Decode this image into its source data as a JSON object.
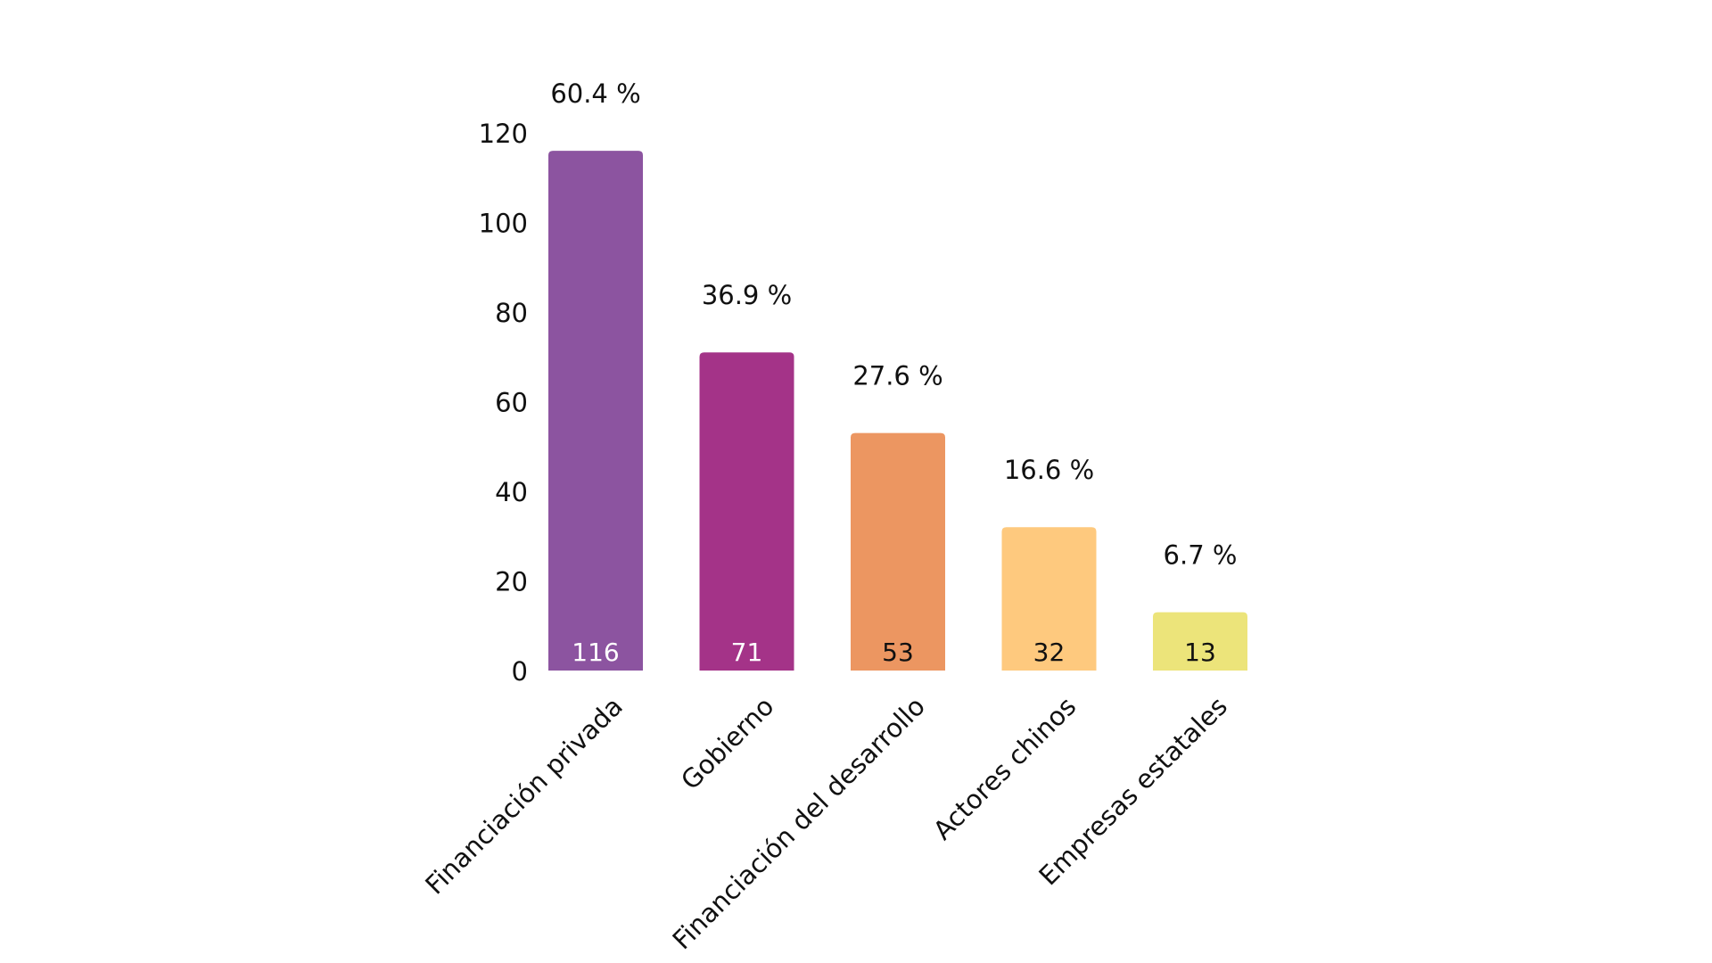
{
  "chart_data": {
    "type": "bar",
    "title": "",
    "xlabel": "",
    "ylabel": "",
    "ylim": [
      0,
      120
    ],
    "yticks": [
      0,
      20,
      40,
      60,
      80,
      100,
      120
    ],
    "grid": false,
    "categories": [
      "Financiación privada",
      "Gobierno",
      "Financiación del desarrollo",
      "Actores chinos",
      "Empresas estatales"
    ],
    "values": [
      116,
      71,
      53,
      32,
      13
    ],
    "percent_labels": [
      "60.4 %",
      "36.9 %",
      "27.6 %",
      "16.6 %",
      "6.7 %"
    ],
    "colors": [
      "#8c54a0",
      "#a43388",
      "#ec9661",
      "#fec97e",
      "#ece47a"
    ],
    "value_label_colors": [
      "#ffffff",
      "#ffffff",
      "#111111",
      "#111111",
      "#111111"
    ]
  }
}
